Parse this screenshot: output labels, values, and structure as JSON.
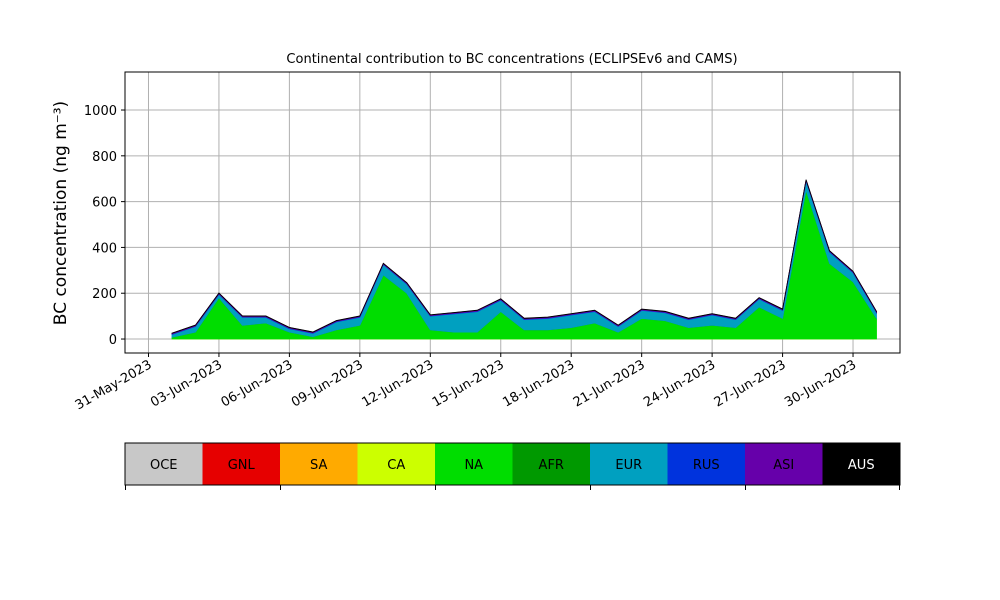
{
  "chart_data": {
    "type": "stacked_area",
    "title": "Continental contribution to BC concentrations (ECLIPSEv6 and CAMS)",
    "y_label": "BC concentration (ng m⁻³)",
    "x": [
      "2023-06-01",
      "2023-06-02",
      "2023-06-03",
      "2023-06-04",
      "2023-06-05",
      "2023-06-06",
      "2023-06-07",
      "2023-06-08",
      "2023-06-09",
      "2023-06-10",
      "2023-06-11",
      "2023-06-12",
      "2023-06-13",
      "2023-06-14",
      "2023-06-15",
      "2023-06-16",
      "2023-06-17",
      "2023-06-18",
      "2023-06-19",
      "2023-06-20",
      "2023-06-21",
      "2023-06-22",
      "2023-06-23",
      "2023-06-24",
      "2023-06-25",
      "2023-06-26",
      "2023-06-27",
      "2023-06-28",
      "2023-06-29",
      "2023-06-30",
      "2023-07-01"
    ],
    "series": [
      {
        "name": "OCE",
        "color": "#c8c8c8",
        "values": [
          0,
          0,
          0,
          0,
          0,
          0,
          0,
          0,
          0,
          0,
          0,
          0,
          0,
          0,
          0,
          0,
          0,
          0,
          0,
          0,
          0,
          0,
          0,
          0,
          0,
          0,
          0,
          0,
          0,
          0,
          0
        ]
      },
      {
        "name": "GNL",
        "color": "#e60000",
        "values": [
          0,
          0,
          0,
          0,
          0,
          0,
          0,
          0,
          0,
          0,
          0,
          0,
          0,
          0,
          0,
          0,
          0,
          0,
          0,
          0,
          0,
          0,
          0,
          0,
          0,
          0,
          0,
          0,
          0,
          0,
          0
        ]
      },
      {
        "name": "SA",
        "color": "#ffaa00",
        "values": [
          0,
          0,
          0,
          0,
          0,
          0,
          0,
          0,
          0,
          0,
          0,
          0,
          0,
          0,
          0,
          0,
          0,
          0,
          0,
          0,
          0,
          0,
          0,
          0,
          0,
          0,
          0,
          0,
          0,
          0,
          0
        ]
      },
      {
        "name": "CA",
        "color": "#ccff00",
        "values": [
          0,
          0,
          0,
          0,
          0,
          0,
          0,
          0,
          0,
          0,
          0,
          0,
          0,
          0,
          0,
          0,
          0,
          0,
          0,
          0,
          0,
          0,
          0,
          0,
          0,
          0,
          0,
          0,
          0,
          0,
          0
        ]
      },
      {
        "name": "NA",
        "color": "#00dd00",
        "values": [
          8,
          30,
          180,
          60,
          70,
          30,
          10,
          40,
          60,
          280,
          200,
          40,
          30,
          30,
          120,
          40,
          40,
          50,
          70,
          30,
          90,
          80,
          50,
          60,
          50,
          140,
          90,
          650,
          330,
          250,
          90
        ]
      },
      {
        "name": "AFR",
        "color": "#009900",
        "values": [
          0,
          0,
          0,
          0,
          0,
          0,
          0,
          0,
          0,
          0,
          0,
          0,
          0,
          0,
          0,
          0,
          0,
          0,
          0,
          0,
          0,
          0,
          0,
          0,
          0,
          0,
          0,
          0,
          0,
          0,
          0
        ]
      },
      {
        "name": "EUR",
        "color": "#00a0c0",
        "values": [
          12,
          25,
          15,
          35,
          25,
          15,
          15,
          35,
          35,
          45,
          40,
          60,
          80,
          90,
          50,
          45,
          50,
          55,
          50,
          25,
          35,
          35,
          35,
          45,
          35,
          35,
          35,
          40,
          50,
          40,
          25
        ]
      },
      {
        "name": "RUS",
        "color": "#0033dd",
        "values": [
          2,
          2,
          2,
          2,
          2,
          2,
          2,
          2,
          2,
          2,
          2,
          2,
          2,
          2,
          2,
          2,
          2,
          2,
          2,
          2,
          2,
          2,
          2,
          2,
          2,
          2,
          2,
          2,
          2,
          2,
          2
        ]
      },
      {
        "name": "ASI",
        "color": "#6600aa",
        "values": [
          3,
          3,
          3,
          3,
          3,
          3,
          3,
          3,
          3,
          3,
          3,
          3,
          3,
          3,
          3,
          3,
          3,
          3,
          3,
          3,
          3,
          3,
          3,
          3,
          3,
          3,
          3,
          3,
          3,
          3,
          3
        ]
      },
      {
        "name": "AUS",
        "color": "#000000",
        "values": [
          1,
          1,
          1,
          1,
          1,
          1,
          1,
          1,
          1,
          1,
          1,
          1,
          1,
          1,
          1,
          1,
          1,
          1,
          1,
          1,
          1,
          1,
          1,
          1,
          1,
          1,
          1,
          1,
          1,
          1,
          1
        ]
      }
    ],
    "xlim": [
      "2023-05-30",
      "2023-07-02"
    ],
    "xticks": [
      {
        "value": "2023-05-31",
        "label": "31-May-2023"
      },
      {
        "value": "2023-06-03",
        "label": "03-Jun-2023"
      },
      {
        "value": "2023-06-06",
        "label": "06-Jun-2023"
      },
      {
        "value": "2023-06-09",
        "label": "09-Jun-2023"
      },
      {
        "value": "2023-06-12",
        "label": "12-Jun-2023"
      },
      {
        "value": "2023-06-15",
        "label": "15-Jun-2023"
      },
      {
        "value": "2023-06-18",
        "label": "18-Jun-2023"
      },
      {
        "value": "2023-06-21",
        "label": "21-Jun-2023"
      },
      {
        "value": "2023-06-24",
        "label": "24-Jun-2023"
      },
      {
        "value": "2023-06-27",
        "label": "27-Jun-2023"
      },
      {
        "value": "2023-06-30",
        "label": "30-Jun-2023"
      }
    ],
    "ylim": [
      -61,
      1166
    ],
    "yticks": [
      0,
      200,
      400,
      600,
      800,
      1000
    ],
    "grid": true
  }
}
